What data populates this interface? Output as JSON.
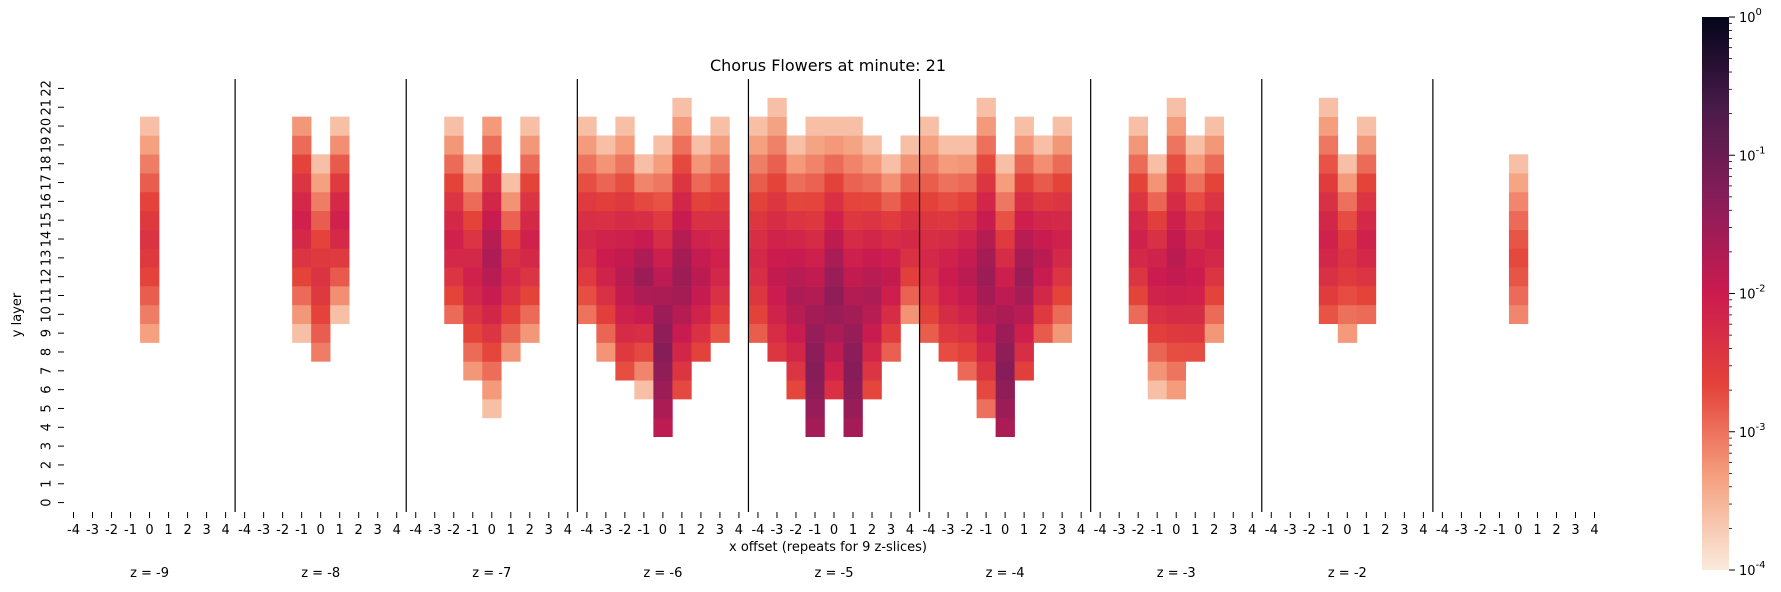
{
  "chart_data": {
    "type": "heatmap",
    "title": "Chorus Flowers at minute: 21",
    "xlabel": "x offset (repeats for 9 z-slices)",
    "ylabel": "y layer",
    "x_tick_labels": [
      "-4",
      "-3",
      "-2",
      "-1",
      "0",
      "1",
      "2",
      "3",
      "4"
    ],
    "y_tick_labels": [
      "0",
      "1",
      "2",
      "3",
      "4",
      "5",
      "6",
      "7",
      "8",
      "9",
      "10",
      "11",
      "12",
      "13",
      "14",
      "15",
      "16",
      "17",
      "18",
      "19",
      "20",
      "21",
      "22"
    ],
    "slices": [
      {
        "label": "z = -9",
        "columns": [
          {
            "x": 0,
            "y_range": [
              9,
              20
            ],
            "center_y": 14,
            "peak": 0.004
          }
        ]
      },
      {
        "label": "z = -8",
        "columns": [
          {
            "x": -1,
            "y_range": [
              9,
              20
            ],
            "center_y": 15,
            "peak": 0.008
          },
          {
            "x": 0,
            "y_range": [
              8,
              18
            ],
            "center_y": 12,
            "peak": 0.004
          },
          {
            "x": 1,
            "y_range": [
              10,
              20
            ],
            "center_y": 15,
            "peak": 0.008
          }
        ]
      },
      {
        "label": "z = -7",
        "columns": [
          {
            "x": -2,
            "y_range": [
              10,
              20
            ],
            "center_y": 14,
            "peak": 0.008
          },
          {
            "x": -1,
            "y_range": [
              7,
              18
            ],
            "center_y": 12,
            "peak": 0.008
          },
          {
            "x": 0,
            "y_range": [
              5,
              20
            ],
            "center_y": 13,
            "peak": 0.02
          },
          {
            "x": 1,
            "y_range": [
              8,
              17
            ],
            "center_y": 12,
            "peak": 0.006
          },
          {
            "x": 2,
            "y_range": [
              9,
              20
            ],
            "center_y": 14,
            "peak": 0.008
          }
        ]
      },
      {
        "label": "z = -6",
        "columns": [
          {
            "x": -4,
            "y_range": [
              10,
              20
            ],
            "center_y": 14,
            "peak": 0.006
          },
          {
            "x": -3,
            "y_range": [
              8,
              19
            ],
            "center_y": 13,
            "peak": 0.01
          },
          {
            "x": -2,
            "y_range": [
              7,
              20
            ],
            "center_y": 12,
            "peak": 0.015
          },
          {
            "x": -1,
            "y_range": [
              6,
              18
            ],
            "center_y": 12,
            "peak": 0.03
          },
          {
            "x": 0,
            "y_range": [
              4,
              19
            ],
            "center_y": 8,
            "peak": 0.05
          },
          {
            "x": 1,
            "y_range": [
              6,
              21
            ],
            "center_y": 12,
            "peak": 0.03
          },
          {
            "x": 2,
            "y_range": [
              8,
              19
            ],
            "center_y": 12,
            "peak": 0.015
          },
          {
            "x": 3,
            "y_range": [
              9,
              20
            ],
            "center_y": 13,
            "peak": 0.008
          }
        ]
      },
      {
        "label": "z = -5",
        "columns": [
          {
            "x": -4,
            "y_range": [
              9,
              20
            ],
            "center_y": 13,
            "peak": 0.006
          },
          {
            "x": -3,
            "y_range": [
              8,
              21
            ],
            "center_y": 12,
            "peak": 0.012
          },
          {
            "x": -2,
            "y_range": [
              6,
              19
            ],
            "center_y": 11,
            "peak": 0.02
          },
          {
            "x": -1,
            "y_range": [
              4,
              20
            ],
            "center_y": 7,
            "peak": 0.05
          },
          {
            "x": 0,
            "y_range": [
              6,
              20
            ],
            "center_y": 11,
            "peak": 0.04
          },
          {
            "x": 1,
            "y_range": [
              4,
              20
            ],
            "center_y": 7,
            "peak": 0.05
          },
          {
            "x": 2,
            "y_range": [
              6,
              19
            ],
            "center_y": 11,
            "peak": 0.02
          },
          {
            "x": 3,
            "y_range": [
              8,
              18
            ],
            "center_y": 12,
            "peak": 0.012
          },
          {
            "x": 4,
            "y_range": [
              10,
              19
            ],
            "center_y": 14,
            "peak": 0.006
          }
        ]
      },
      {
        "label": "z = -4",
        "columns": [
          {
            "x": -4,
            "y_range": [
              9,
              20
            ],
            "center_y": 13,
            "peak": 0.006
          },
          {
            "x": -3,
            "y_range": [
              8,
              19
            ],
            "center_y": 12,
            "peak": 0.01
          },
          {
            "x": -2,
            "y_range": [
              7,
              19
            ],
            "center_y": 12,
            "peak": 0.015
          },
          {
            "x": -1,
            "y_range": [
              5,
              21
            ],
            "center_y": 12,
            "peak": 0.03
          },
          {
            "x": 0,
            "y_range": [
              4,
              18
            ],
            "center_y": 7,
            "peak": 0.05
          },
          {
            "x": 1,
            "y_range": [
              7,
              20
            ],
            "center_y": 12,
            "peak": 0.03
          },
          {
            "x": 2,
            "y_range": [
              9,
              19
            ],
            "center_y": 13,
            "peak": 0.015
          },
          {
            "x": 3,
            "y_range": [
              9,
              20
            ],
            "center_y": 14,
            "peak": 0.008
          }
        ]
      },
      {
        "label": "z = -3",
        "columns": [
          {
            "x": -2,
            "y_range": [
              10,
              20
            ],
            "center_y": 14,
            "peak": 0.008
          },
          {
            "x": -1,
            "y_range": [
              6,
              18
            ],
            "center_y": 12,
            "peak": 0.01
          },
          {
            "x": 0,
            "y_range": [
              6,
              21
            ],
            "center_y": 13,
            "peak": 0.015
          },
          {
            "x": 1,
            "y_range": [
              8,
              19
            ],
            "center_y": 12,
            "peak": 0.01
          },
          {
            "x": 2,
            "y_range": [
              9,
              20
            ],
            "center_y": 14,
            "peak": 0.008
          }
        ]
      },
      {
        "label": "z = -2",
        "columns": [
          {
            "x": -1,
            "y_range": [
              10,
              21
            ],
            "center_y": 14,
            "peak": 0.008
          },
          {
            "x": 0,
            "y_range": [
              9,
              18
            ],
            "center_y": 13,
            "peak": 0.004
          },
          {
            "x": 1,
            "y_range": [
              10,
              20
            ],
            "center_y": 14,
            "peak": 0.008
          }
        ]
      },
      {
        "label": "",
        "columns": [
          {
            "x": 0,
            "y_range": [
              10,
              18
            ],
            "center_y": 13,
            "peak": 0.002
          }
        ]
      }
    ],
    "colorbar": {
      "scale": "log",
      "range": [
        0.0001,
        1
      ],
      "tick_labels": [
        "10^-4",
        "10^-3",
        "10^-2",
        "10^-1",
        "10^0"
      ],
      "colors": [
        "#faebdd",
        "#f5a180",
        "#e4433a",
        "#cb1b4f",
        "#891d59",
        "#4a1b4a",
        "#03051a"
      ]
    }
  }
}
